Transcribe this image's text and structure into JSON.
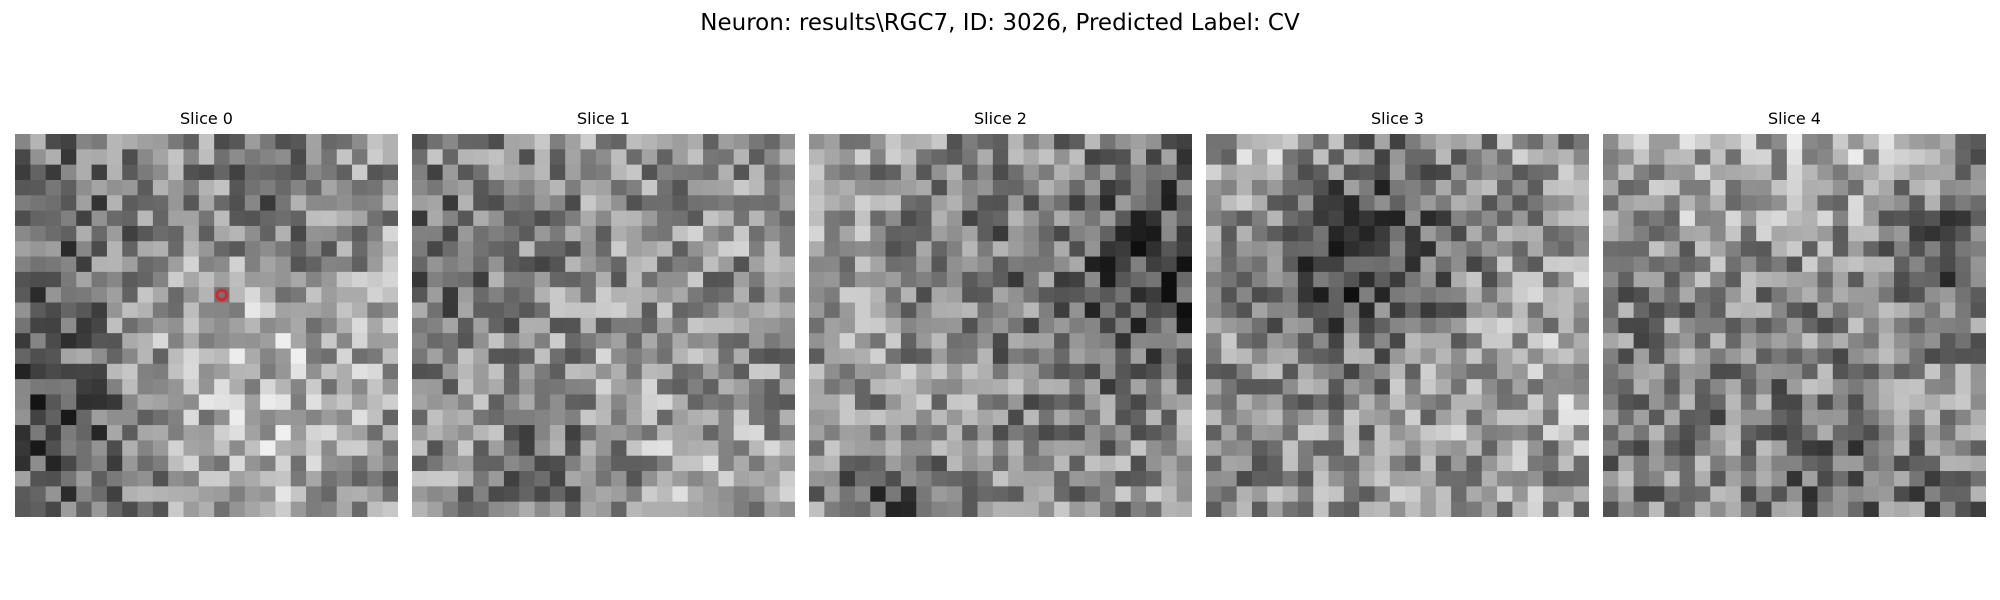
{
  "figure": {
    "suptitle": "Neuron: results\\RGC7, ID: 3026, Predicted Label: CV"
  },
  "slices": [
    {
      "title": "Slice 0",
      "seed": 11,
      "has_marker": true,
      "marker_color": "#d62728",
      "marker_cell": [
        13,
        10
      ]
    },
    {
      "title": "Slice 1",
      "seed": 23,
      "has_marker": false
    },
    {
      "title": "Slice 2",
      "seed": 37,
      "has_marker": false
    },
    {
      "title": "Slice 3",
      "seed": 41,
      "has_marker": false
    },
    {
      "title": "Slice 4",
      "seed": 59,
      "has_marker": false
    }
  ],
  "image": {
    "grid_size": 25,
    "colormap": "grayscale"
  }
}
